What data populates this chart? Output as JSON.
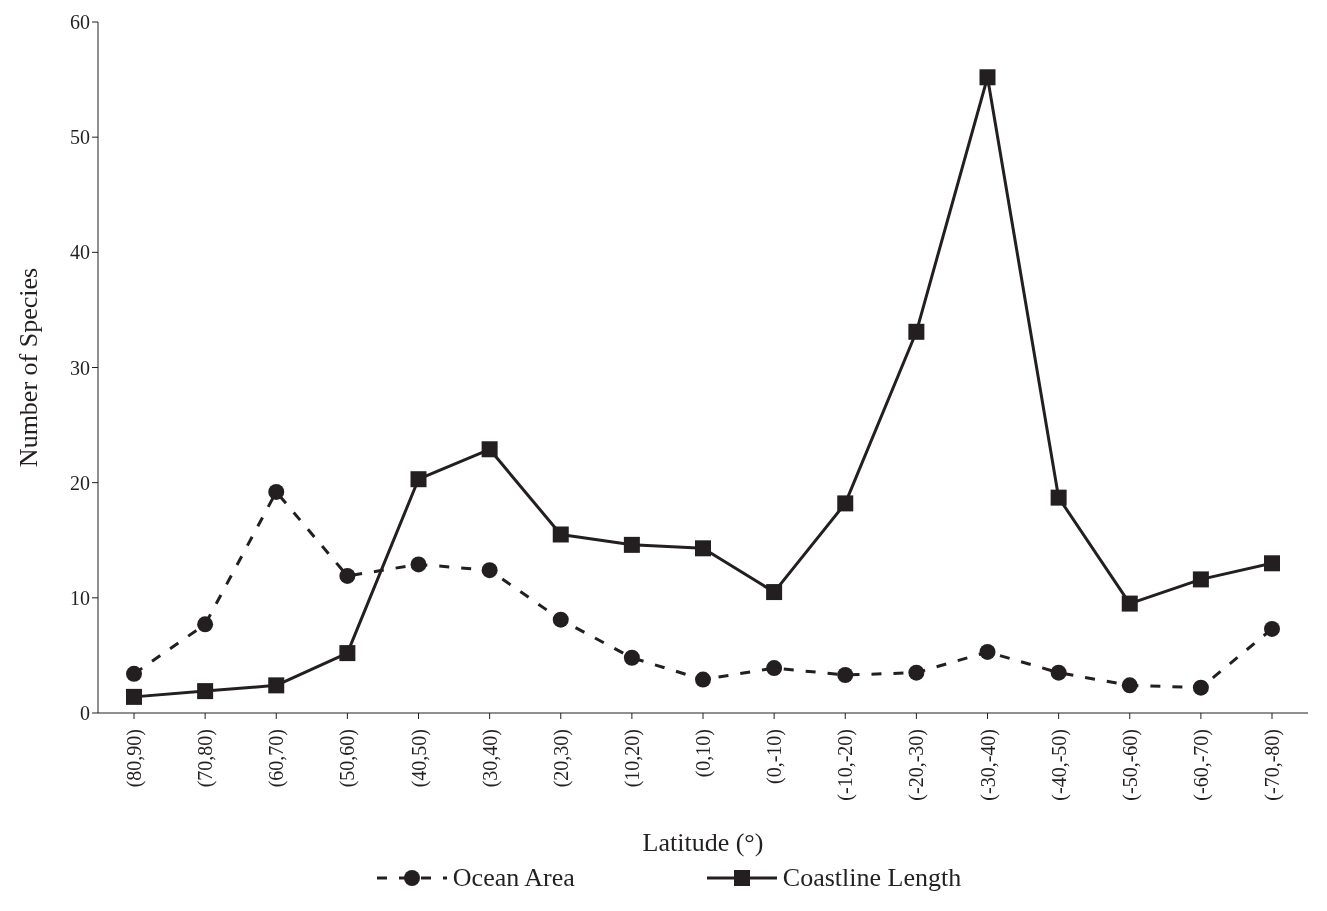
{
  "chart_data": {
    "type": "line",
    "xlabel": "Latitude (°)",
    "ylabel": "Number of Species",
    "categories": [
      "(80,90)",
      "(70,80)",
      "(60,70)",
      "(50,60)",
      "(40,50)",
      "(30,40)",
      "(20,30)",
      "(10,20)",
      "(0,10)",
      "(0,-10)",
      "(-10,-20)",
      "(-20,-30)",
      "(-30,-40)",
      "(-40,-50)",
      "(-50,-60)",
      "(-60,-70)",
      "(-70,-80)"
    ],
    "series": [
      {
        "name": "Ocean Area",
        "color": "#231f20",
        "marker": "circle",
        "line_style": "dashed",
        "values": [
          3.4,
          7.7,
          19.2,
          11.9,
          12.9,
          12.4,
          8.1,
          4.8,
          2.9,
          3.9,
          3.3,
          3.5,
          5.3,
          3.5,
          2.4,
          2.2,
          7.3
        ]
      },
      {
        "name": "Coastline Length",
        "color": "#231f20",
        "marker": "square",
        "line_style": "solid",
        "values": [
          1.4,
          1.9,
          2.4,
          5.2,
          20.3,
          22.9,
          15.5,
          14.6,
          14.3,
          10.5,
          18.2,
          33.1,
          55.2,
          18.7,
          9.5,
          11.6,
          13.0
        ]
      }
    ],
    "ylim": [
      0,
      60
    ],
    "yticks": [
      0,
      10,
      20,
      30,
      40,
      50,
      60
    ],
    "legend": "bottom"
  }
}
